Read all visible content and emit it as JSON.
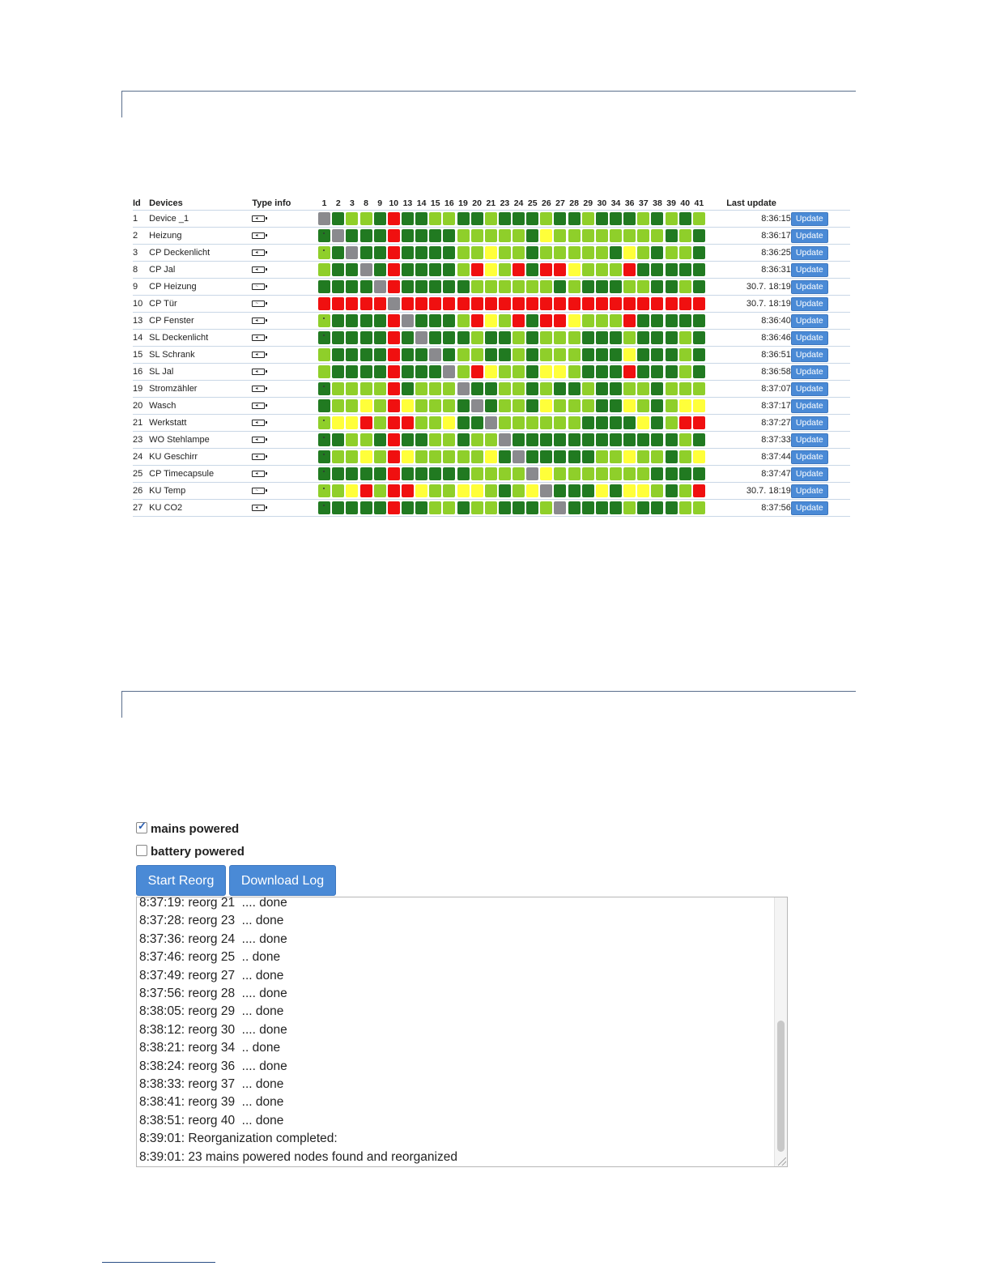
{
  "colors": {
    "dark_green": "#217a21",
    "light_green": "#8fcf2a",
    "yellow": "#ffff3a",
    "red": "#f01010",
    "gray": "#8a8a8e",
    "button_blue": "#4a8ad6"
  },
  "matrix": {
    "headers": {
      "id": "Id",
      "devices": "Devices",
      "type_info": "Type info",
      "last_update": "Last update"
    },
    "columns": [
      "1",
      "2",
      "3",
      "8",
      "9",
      "10",
      "13",
      "14",
      "15",
      "16",
      "19",
      "20",
      "21",
      "23",
      "24",
      "25",
      "26",
      "27",
      "28",
      "29",
      "30",
      "34",
      "36",
      "37",
      "38",
      "39",
      "40",
      "41"
    ],
    "update_label": "Update",
    "rows": [
      {
        "id": "1",
        "name": "Device _1",
        "type_icon": "battery-plug-icon",
        "time": "8:36:15",
        "cells": "XDLLDRDDLLDDLDDDLDDLDDDLDLDL",
        "dot": false
      },
      {
        "id": "2",
        "name": "Heizung",
        "type_icon": "battery-plug-icon",
        "time": "8:36:17",
        "cells": "DXDDDRDDDDLLLLLDYLLLLLLLLDLD",
        "dot": true
      },
      {
        "id": "3",
        "name": "CP Deckenlicht",
        "type_icon": "battery-plug-icon",
        "time": "8:36:25",
        "cells": "LDXDDRDDDDLLYLLDLLLLLDYLDLLD",
        "dot": true
      },
      {
        "id": "8",
        "name": "CP Jal",
        "type_icon": "battery-plug-icon",
        "time": "8:36:31",
        "cells": "LDDXDRDDDDLRYLRDRRYLLLRDDDDD",
        "dot": false
      },
      {
        "id": "9",
        "name": "CP Heizung",
        "type_icon": "battery-wave-icon",
        "time": "30.7. 18:19",
        "cells": "DDDDXRDDDDDLLLLLLDLDDDLLDDLD",
        "dot": false
      },
      {
        "id": "10",
        "name": "CP Tür",
        "type_icon": "battery-wave-icon",
        "time": "30.7. 18:19",
        "cells": "RRRRRXRRRRRRRRRRRRRRRRRRRRRR",
        "dot": false
      },
      {
        "id": "13",
        "name": "CP Fenster",
        "type_icon": "battery-plug-icon",
        "time": "8:36:40",
        "cells": "LDDDDRXDDDLRYLRDRRYLLLRDDDDD",
        "dot": true
      },
      {
        "id": "14",
        "name": "SL Deckenlicht",
        "type_icon": "battery-plug-icon",
        "time": "8:36:46",
        "cells": "DDDDDRDXDDDLDDLDLLLDDDLDDDLD",
        "dot": true
      },
      {
        "id": "15",
        "name": "SL Schrank",
        "type_icon": "battery-plug-icon",
        "time": "8:36:51",
        "cells": "LDDDDRDDXDLLDDLDLLLDDDYDDDLD",
        "dot": false
      },
      {
        "id": "16",
        "name": "SL Jal",
        "type_icon": "battery-plug-icon",
        "time": "8:36:58",
        "cells": "LDDDDRDDDXLRYLLDYYLDDDRDDDLD",
        "dot": false
      },
      {
        "id": "19",
        "name": "Stromzähler",
        "type_icon": "battery-plug-icon",
        "time": "8:37:07",
        "cells": "DLLLLRDLLLXDDLLDLDDLDDLLDLLL",
        "dot": true
      },
      {
        "id": "20",
        "name": "Wasch",
        "type_icon": "battery-plug-icon",
        "time": "8:37:17",
        "cells": "DLLYLRYLLLDXDLLDYLLLDDYLDLYY",
        "dot": false
      },
      {
        "id": "21",
        "name": "Werkstatt",
        "type_icon": "battery-plug-icon",
        "time": "8:37:27",
        "cells": "LYYRLRRLLYDDXLLLLLLDDDDYDLRR",
        "dot": true
      },
      {
        "id": "23",
        "name": "WO Stehlampe",
        "type_icon": "battery-plug-icon",
        "time": "8:37:33",
        "cells": "DDLLDRDDLLDLLXDDDDDDDDDDDDLD",
        "dot": true
      },
      {
        "id": "24",
        "name": "KU Geschirr",
        "type_icon": "battery-plug-icon",
        "time": "8:37:44",
        "cells": "DLLYLRYLLLLLYDXDDDDDLLYLLDLY",
        "dot": true
      },
      {
        "id": "25",
        "name": "CP Timecapsule",
        "type_icon": "battery-plug-icon",
        "time": "8:37:47",
        "cells": "DDDDDRDDDDDLLLLXYLLLLLLLDDDD",
        "dot": true
      },
      {
        "id": "26",
        "name": "KU Temp",
        "type_icon": "battery-wave-icon",
        "time": "30.7. 18:19",
        "cells": "LLYRLRRYLLYYLDLYXDDDYDYYLDLR",
        "dot": true
      },
      {
        "id": "27",
        "name": "KU CO2",
        "type_icon": "battery-plug-icon",
        "time": "8:37:56",
        "cells": "DDDDDRDDLLDLLDDDLXDDDDLDDDLL",
        "dot": true
      }
    ]
  },
  "reorg": {
    "mains_label": "mains powered",
    "mains_checked": true,
    "battery_label": "battery powered",
    "battery_checked": false,
    "start_button": "Start Reorg",
    "download_button": "Download Log",
    "log_lines": [
      "8:37:19: reorg 21  .... done",
      "8:37:28: reorg 23  ... done",
      "8:37:36: reorg 24  .... done",
      "8:37:46: reorg 25  .. done",
      "8:37:49: reorg 27  ... done",
      "8:37:56: reorg 28  .... done",
      "8:38:05: reorg 29  ... done",
      "8:38:12: reorg 30  .... done",
      "8:38:21: reorg 34  .. done",
      "8:38:24: reorg 36  .... done",
      "8:38:33: reorg 37  ... done",
      "8:38:41: reorg 39  ... done",
      "8:38:51: reorg 40  ... done",
      "8:39:01: Reorganization completed:",
      "8:39:01: 23 mains powered nodes found and reorganized"
    ]
  }
}
